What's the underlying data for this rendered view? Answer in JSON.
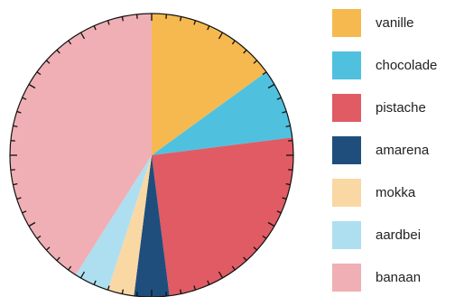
{
  "chart_data": {
    "type": "pie",
    "categories": [
      "vanille",
      "chocolade",
      "pistache",
      "amarena",
      "mokka",
      "aardbei",
      "banaan"
    ],
    "values": [
      15,
      8,
      25,
      4,
      3,
      4,
      41
    ],
    "colors": [
      "#f5b94f",
      "#4fc1df",
      "#e05b64",
      "#1f4e7c",
      "#fad8a4",
      "#aedff0",
      "#f0afb4"
    ],
    "start_angle_deg": 0,
    "direction": "clockwise",
    "outer_tick_marks": 60,
    "legend_position": "right"
  }
}
